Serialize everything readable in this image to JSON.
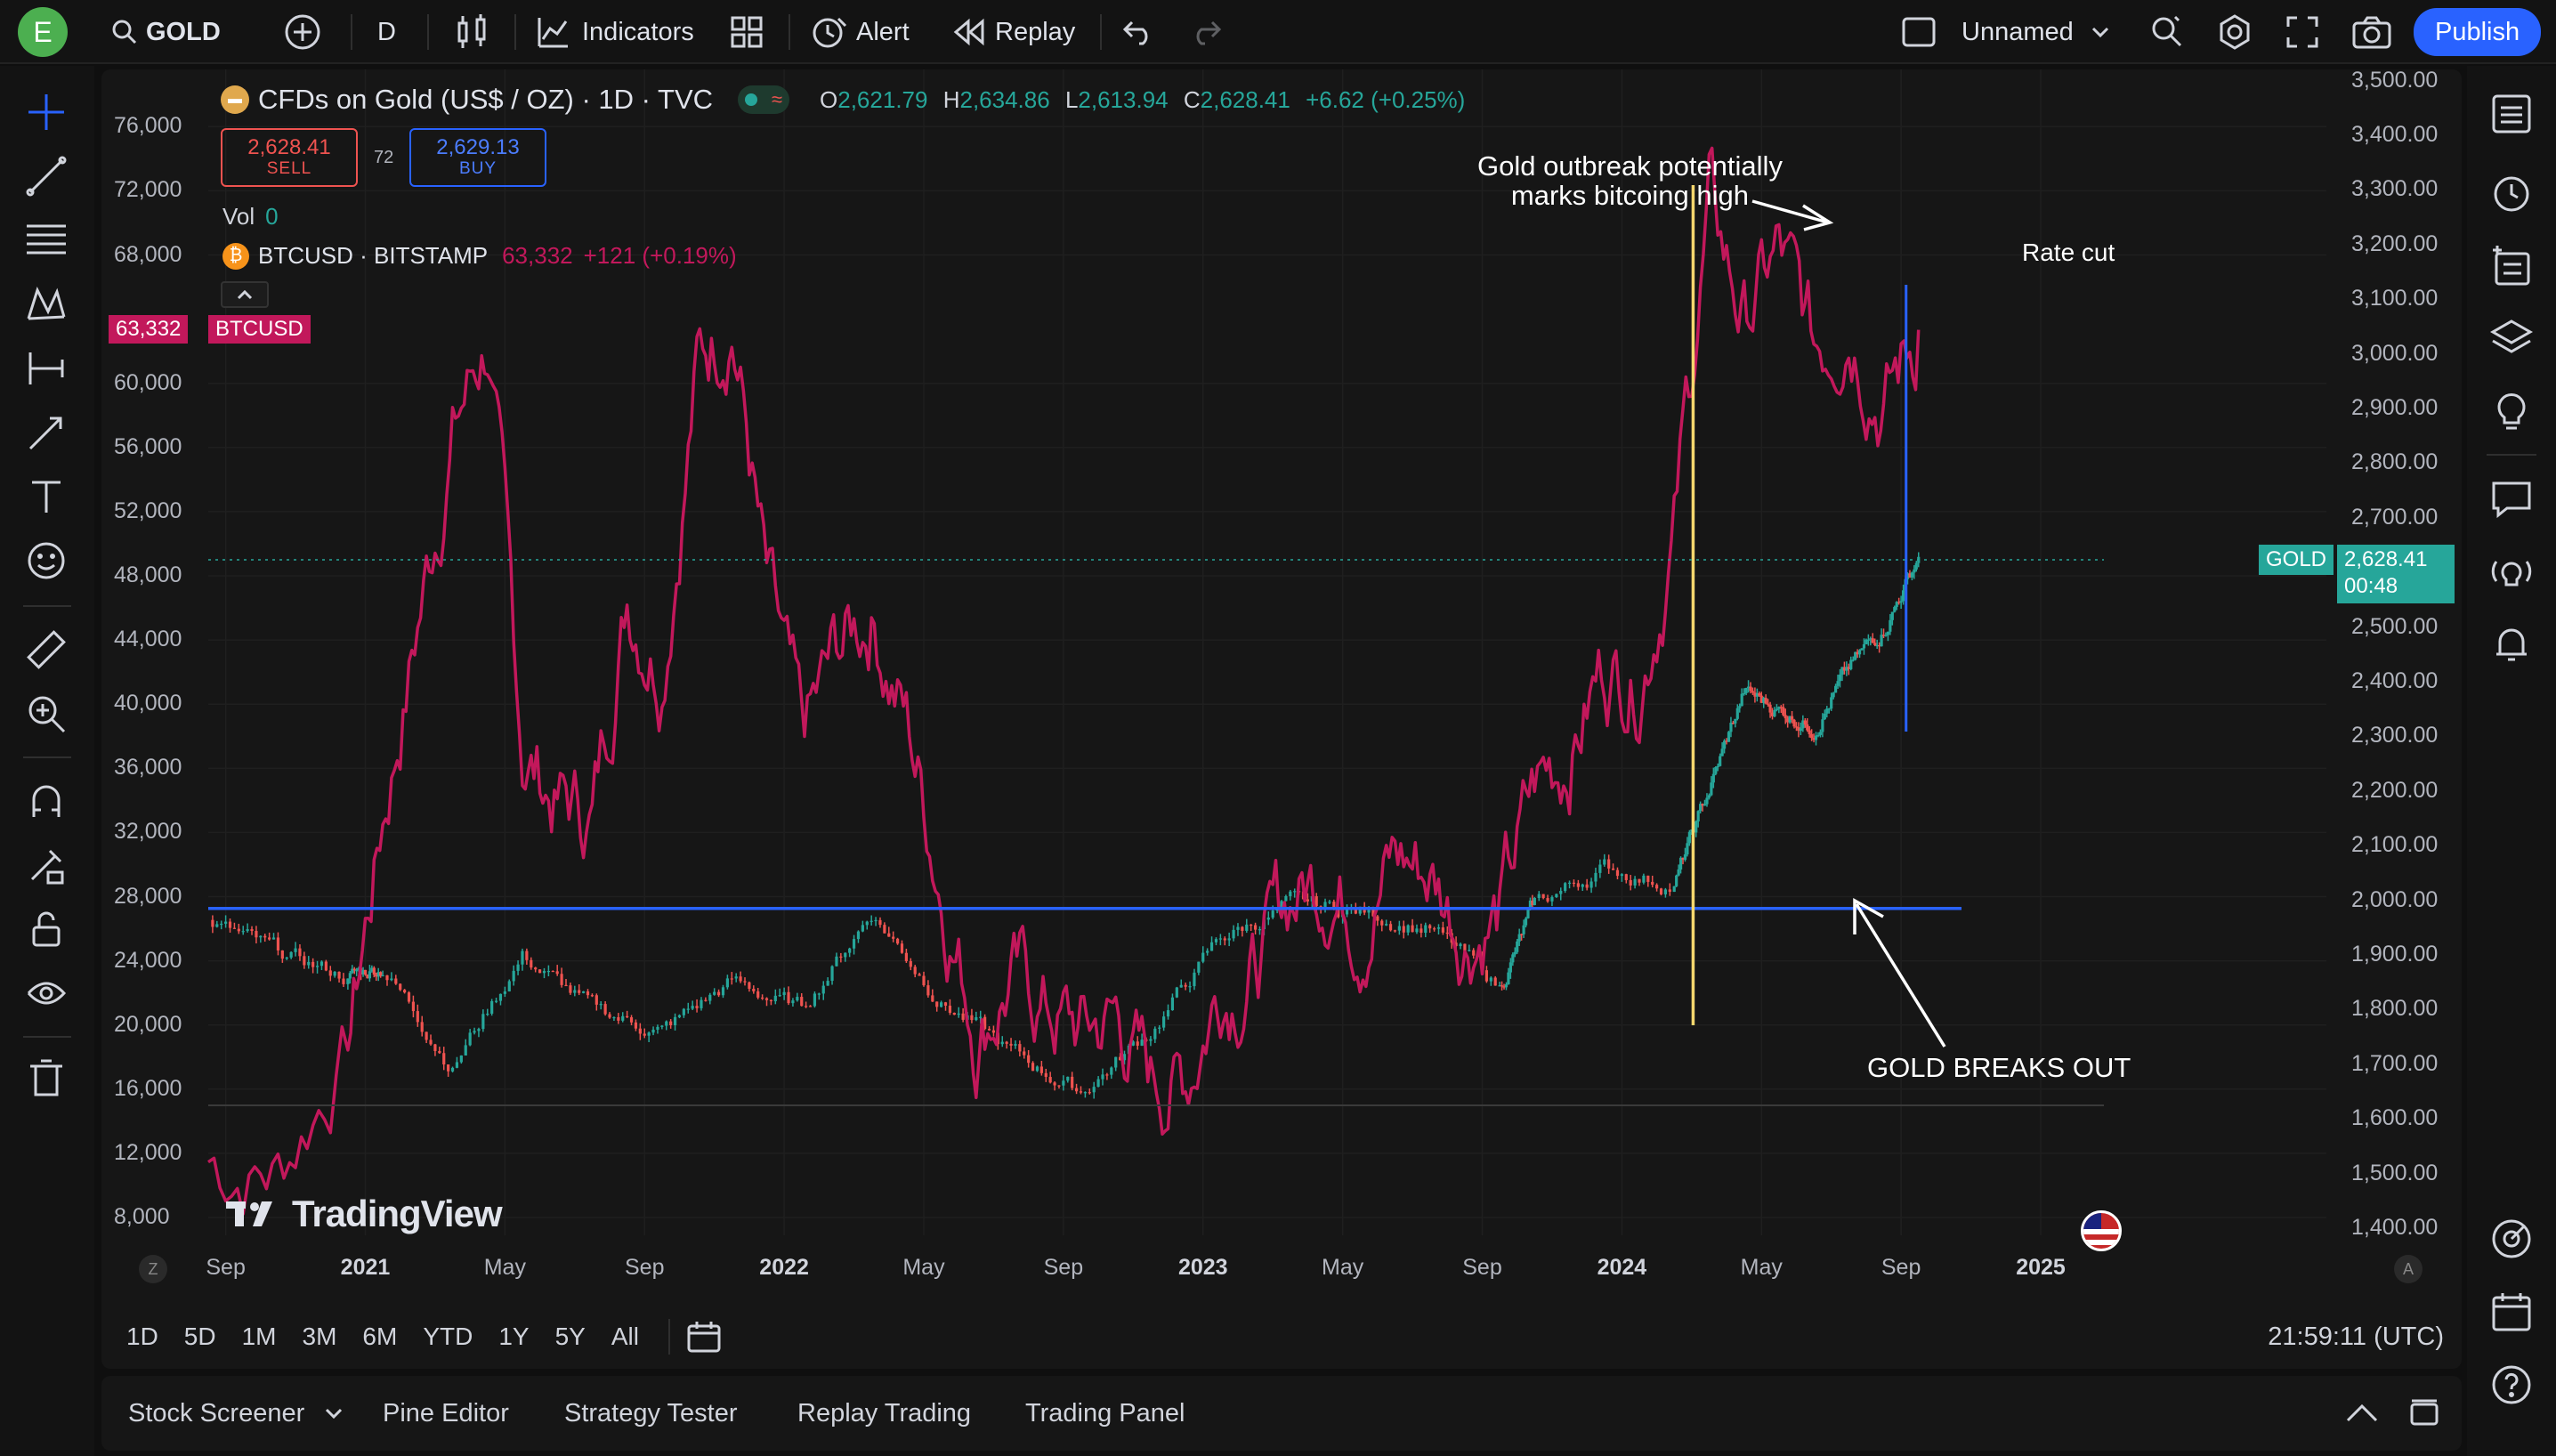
{
  "topbar": {
    "avatar_letter": "E",
    "symbol": "GOLD",
    "interval": "D",
    "indicators_label": "Indicators",
    "alert_label": "Alert",
    "replay_label": "Replay",
    "layout_name": "Unnamed",
    "publish_label": "Publish"
  },
  "legend": {
    "main_title": "CFDs on Gold (US$ / OZ) · 1D · TVC",
    "ohlc": {
      "o_key": "O",
      "o": "2,621.79",
      "h_key": "H",
      "h": "2,634.86",
      "l_key": "L",
      "l": "2,613.94",
      "c_key": "C",
      "c": "2,628.41",
      "change": "+6.62 (+0.25%)"
    },
    "sell_price": "2,628.41",
    "sell_label": "SELL",
    "spread": "72",
    "buy_price": "2,629.13",
    "buy_label": "BUY",
    "vol_label": "Vol",
    "vol_value": "0",
    "btc_title": "BTCUSD · BITSTAMP",
    "btc_price": "63,332",
    "btc_change": "+121 (+0.19%)"
  },
  "left_axis": {
    "ticks": [
      "76,000",
      "72,000",
      "68,000",
      "60,000",
      "56,000",
      "52,000",
      "48,000",
      "44,000",
      "40,000",
      "36,000",
      "32,000",
      "28,000",
      "24,000",
      "20,000",
      "16,000",
      "12,000",
      "8,000"
    ],
    "btc_tag_value": "63,332",
    "btc_tag_label": "BTCUSD"
  },
  "right_axis": {
    "ticks": [
      "3,500.00",
      "3,400.00",
      "3,300.00",
      "3,200.00",
      "3,100.00",
      "3,000.00",
      "2,900.00",
      "2,800.00",
      "2,700.00",
      "2,500.00",
      "2,400.00",
      "2,300.00",
      "2,200.00",
      "2,100.00",
      "2,000.00",
      "1,900.00",
      "1,800.00",
      "1,700.00",
      "1,600.00",
      "1,500.00",
      "1,400.00"
    ],
    "gold_tag_label": "GOLD",
    "gold_tag_price": "2,628.41",
    "gold_tag_countdown": "00:48"
  },
  "time_axis": {
    "left_button": "Z",
    "right_button": "A",
    "labels": [
      "Sep",
      "2021",
      "May",
      "Sep",
      "2022",
      "May",
      "Sep",
      "2023",
      "May",
      "Sep",
      "2024",
      "May",
      "Sep",
      "2025"
    ]
  },
  "annotations": {
    "outbreak_line1": "Gold outbreak potentially",
    "outbreak_line2": "marks bitcoing high",
    "rate_cut": "Rate cut",
    "breaks_out": "GOLD BREAKS OUT"
  },
  "watermark": "TradingView",
  "timeframes": [
    "1D",
    "5D",
    "1M",
    "3M",
    "6M",
    "YTD",
    "1Y",
    "5Y",
    "All"
  ],
  "clock": "21:59:11 (UTC)",
  "bottom_tabs": [
    "Stock Screener",
    "Pine Editor",
    "Strategy Tester",
    "Replay Trading",
    "Trading Panel"
  ],
  "colors": {
    "gold_up": "#26a69a",
    "gold_down": "#ef5350",
    "btc_line": "#c2185b",
    "support_line": "#2962ff",
    "event_line": "#f5d76e",
    "publish": "#2962ff"
  },
  "chart_data": [
    {
      "type": "line",
      "name": "BTCUSD · BITSTAMP",
      "axis": "left",
      "x": [
        "2020-08",
        "2020-10",
        "2020-12",
        "2021-01",
        "2021-02",
        "2021-03",
        "2021-04",
        "2021-05",
        "2021-06",
        "2021-07",
        "2021-08",
        "2021-09",
        "2021-10",
        "2021-11",
        "2021-12",
        "2022-01",
        "2022-02",
        "2022-03",
        "2022-04",
        "2022-05",
        "2022-06",
        "2022-07",
        "2022-08",
        "2022-09",
        "2022-10",
        "2022-11",
        "2022-12",
        "2023-01",
        "2023-02",
        "2023-03",
        "2023-04",
        "2023-05",
        "2023-06",
        "2023-07",
        "2023-08",
        "2023-09",
        "2023-10",
        "2023-11",
        "2023-12",
        "2024-01",
        "2024-02",
        "2024-03",
        "2024-04",
        "2024-05",
        "2024-06",
        "2024-07",
        "2024-08",
        "2024-09"
      ],
      "y": [
        11500,
        11000,
        19000,
        33000,
        45000,
        57000,
        63000,
        37000,
        34000,
        33000,
        47000,
        43000,
        61000,
        65000,
        47000,
        37000,
        43000,
        46000,
        39000,
        29000,
        20000,
        23000,
        21000,
        19500,
        20500,
        16500,
        16800,
        23000,
        23500,
        28000,
        29500,
        27000,
        30500,
        29500,
        26000,
        27000,
        34500,
        37500,
        42500,
        42000,
        51000,
        71000,
        64000,
        68000,
        62000,
        65000,
        59000,
        63332
      ],
      "ylim": [
        8000,
        76000
      ]
    },
    {
      "type": "candlestick",
      "name": "CFDs on Gold (US$ / OZ) · 1D · TVC",
      "axis": "right",
      "x": [
        "2020-08",
        "2020-10",
        "2020-12",
        "2021-01",
        "2021-03",
        "2021-05",
        "2021-07",
        "2021-09",
        "2021-11",
        "2022-01",
        "2022-03",
        "2022-05",
        "2022-07",
        "2022-09",
        "2022-11",
        "2023-01",
        "2023-03",
        "2023-05",
        "2023-07",
        "2023-09",
        "2023-10",
        "2023-12",
        "2024-02",
        "2024-03",
        "2024-04",
        "2024-05",
        "2024-06",
        "2024-07",
        "2024-08",
        "2024-09"
      ],
      "y": [
        1960,
        1900,
        1860,
        1880,
        1700,
        1900,
        1800,
        1760,
        1850,
        1800,
        1980,
        1820,
        1720,
        1650,
        1760,
        1930,
        1990,
        1980,
        1950,
        1840,
        1990,
        2060,
        2030,
        2200,
        2380,
        2350,
        2320,
        2420,
        2500,
        2628.41
      ],
      "ylim": [
        1400,
        3500
      ]
    }
  ],
  "drawings": {
    "support_level": 1985,
    "event_date": "2024-03",
    "rate_cut_date": "2024-09"
  }
}
